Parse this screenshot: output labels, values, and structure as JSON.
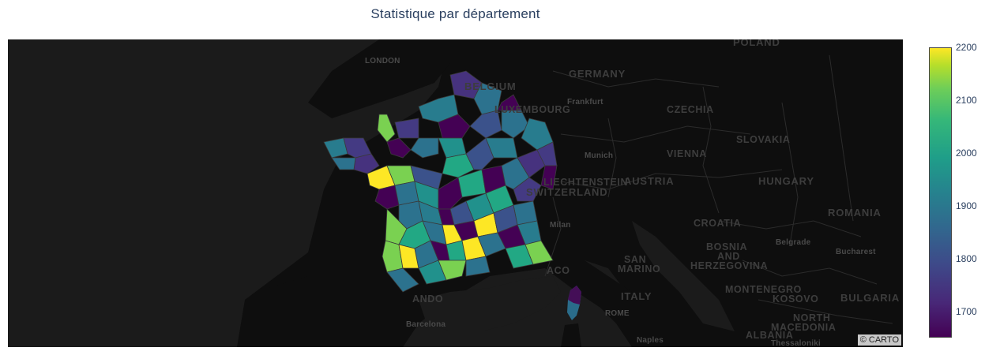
{
  "title": "Statistique par département",
  "map": {
    "attribution": "© CARTO",
    "basemap_style": "carto-darkmatter",
    "labels": {
      "london": "LONDON",
      "belgium": "BELGIUM",
      "luxembourg": "LUXEMBOURG",
      "germany": "GERMANY",
      "frankfurt": "Frankfurt",
      "poland": "POLAND",
      "czechia": "CZECHIA",
      "slovakia": "SLOVAKIA",
      "vienna": "VIENNA",
      "munich": "Munich",
      "liechtenstein": "LIECHTENSTEIN",
      "switzerland": "SWITZERLAND",
      "austria": "AUSTRIA",
      "hungary": "HUNGARY",
      "romania": "ROMANIA",
      "croatia": "CROATIA",
      "milan": "Milan",
      "bosnia": "BOSNIA",
      "and": "AND",
      "herzegovina": "HERZEGOVINA",
      "belgrade": "Belgrade",
      "bucharest": "Bucharest",
      "san": "SAN",
      "marino": "MARINO",
      "monaco": "ACO",
      "italy": "ITALY",
      "rome": "ROME",
      "montenegro": "MONTENEGRO",
      "kosovo": "KOSOVO",
      "bulgaria": "BULGARIA",
      "north": "NORTH",
      "macedonia": "MACEDONIA",
      "albania": "ALBANIA",
      "thessaloniki": "Thessaloniki",
      "naples": "Naples",
      "andorra": "ANDO",
      "barcelona": "Barcelona"
    }
  },
  "colorbar": {
    "min": 1650,
    "max": 2200,
    "colorscale": "Viridis",
    "ticks": [
      "2200",
      "2100",
      "2000",
      "1900",
      "1800",
      "1700"
    ],
    "tick_values": [
      2200,
      2100,
      2000,
      1900,
      1800,
      1700
    ]
  }
}
